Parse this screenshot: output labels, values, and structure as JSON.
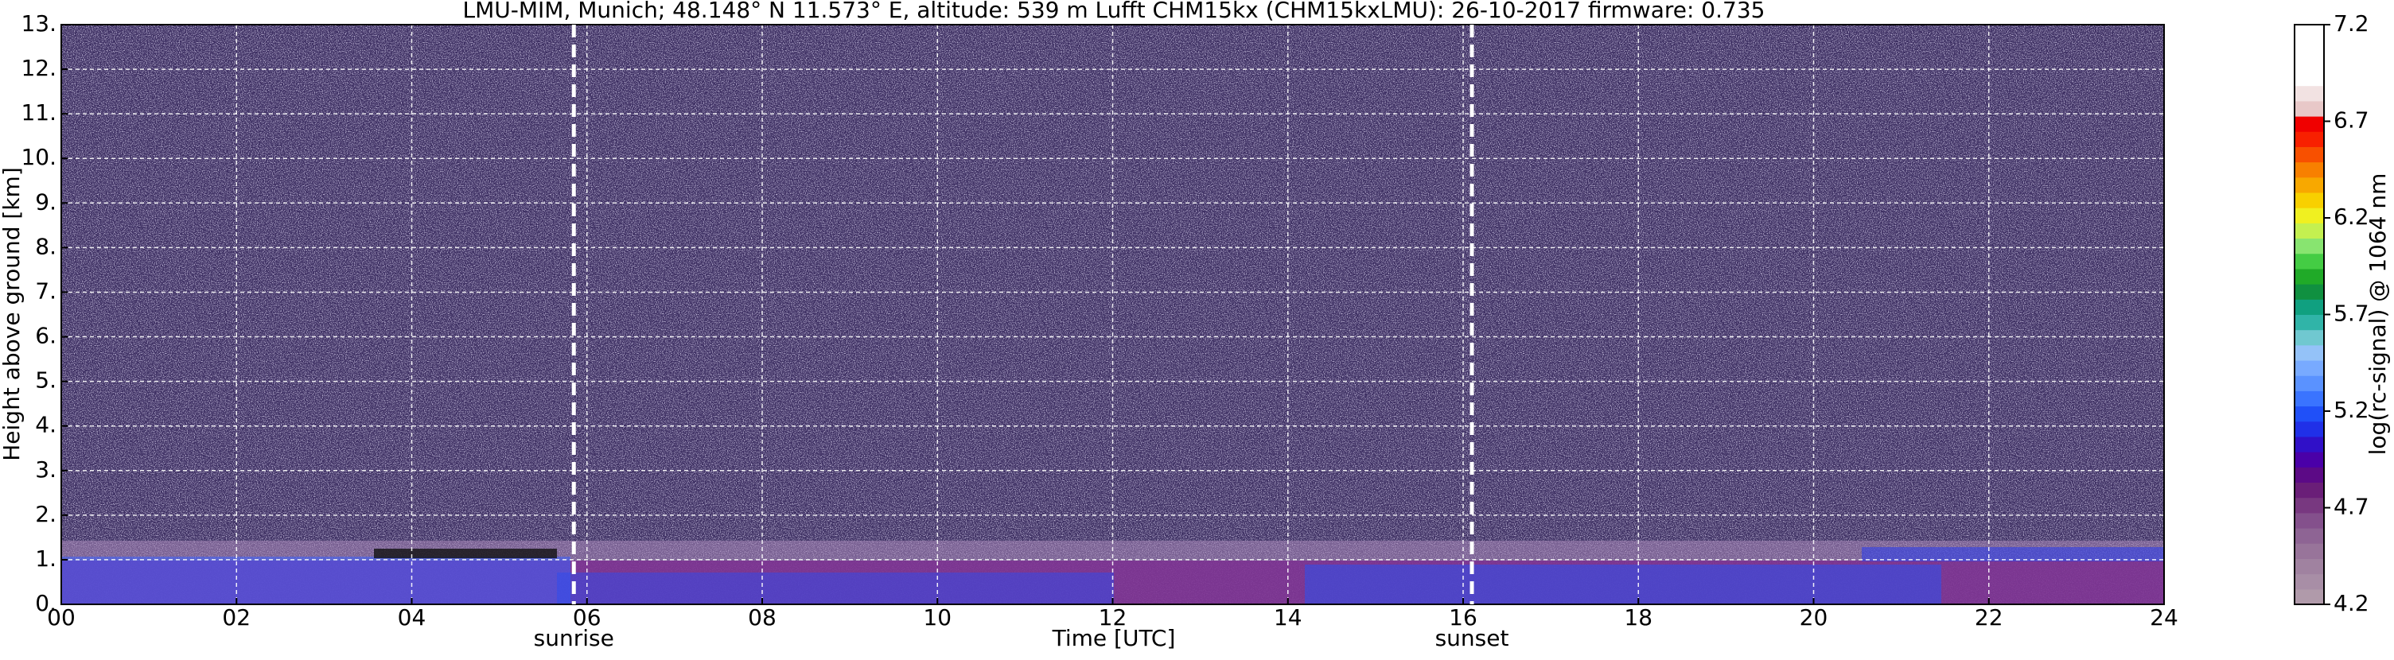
{
  "chart_data": {
    "type": "heatmap",
    "title": "LMU-MIM, Munich; 48.148° N 11.573° E, altitude: 539 m    Lufft CHM15kx (CHM15kxLMU): 26-10-2017    firmware: 0.735",
    "x_label": "Time [UTC]",
    "y_label": "Height above ground [km]",
    "xlim": [
      0,
      24
    ],
    "xticks": [
      {
        "value": 0,
        "label": "00"
      },
      {
        "value": 2,
        "label": "02"
      },
      {
        "value": 4,
        "label": "04"
      },
      {
        "value": 6,
        "label": "06"
      },
      {
        "value": 8,
        "label": "08"
      },
      {
        "value": 10,
        "label": "10"
      },
      {
        "value": 12,
        "label": "12"
      },
      {
        "value": 14,
        "label": "14"
      },
      {
        "value": 16,
        "label": "16"
      },
      {
        "value": 18,
        "label": "18"
      },
      {
        "value": 20,
        "label": "20"
      },
      {
        "value": 22,
        "label": "22"
      },
      {
        "value": 24,
        "label": "24"
      }
    ],
    "ylim": [
      0,
      13
    ],
    "yticks": [
      {
        "value": 0,
        "label": "0."
      },
      {
        "value": 1,
        "label": "1."
      },
      {
        "value": 2,
        "label": "2."
      },
      {
        "value": 3,
        "label": "3."
      },
      {
        "value": 4,
        "label": "4."
      },
      {
        "value": 5,
        "label": "5."
      },
      {
        "value": 6,
        "label": "6."
      },
      {
        "value": 7,
        "label": "7."
      },
      {
        "value": 8,
        "label": "8."
      },
      {
        "value": 9,
        "label": "9."
      },
      {
        "value": 10,
        "label": "10."
      },
      {
        "value": 11,
        "label": "11."
      },
      {
        "value": 12,
        "label": "12."
      },
      {
        "value": 13,
        "label": "13."
      }
    ],
    "grid": true,
    "annotations": [
      {
        "label": "sunrise",
        "x": 5.85
      },
      {
        "label": "sunset",
        "x": 16.1
      }
    ],
    "colorbar": {
      "label": "log(rc-signal) @ 1064 nm",
      "lim": [
        4.2,
        7.2
      ],
      "ticks": [
        4.2,
        4.7,
        5.2,
        5.7,
        6.2,
        6.7,
        7.2
      ],
      "colors": [
        "#b09aaa",
        "#a88ea6",
        "#a082a0",
        "#98749a",
        "#8e6494",
        "#84508c",
        "#783880",
        "#6a1e78",
        "#5c0a86",
        "#4a00a8",
        "#3010c8",
        "#2030e8",
        "#2050f8",
        "#3a74ff",
        "#5a92ff",
        "#78aaff",
        "#94c2f8",
        "#70c8d0",
        "#30b4a8",
        "#10a080",
        "#109040",
        "#20aa28",
        "#44cc44",
        "#88e470",
        "#c4f050",
        "#f0f020",
        "#f8d000",
        "#f8a800",
        "#f88000",
        "#f85000",
        "#f82000",
        "#f00000",
        "#e8c8c8",
        "#f2e2e2",
        "#ffffff",
        "#ffffff",
        "#ffffff",
        "#ffffff"
      ]
    }
  }
}
